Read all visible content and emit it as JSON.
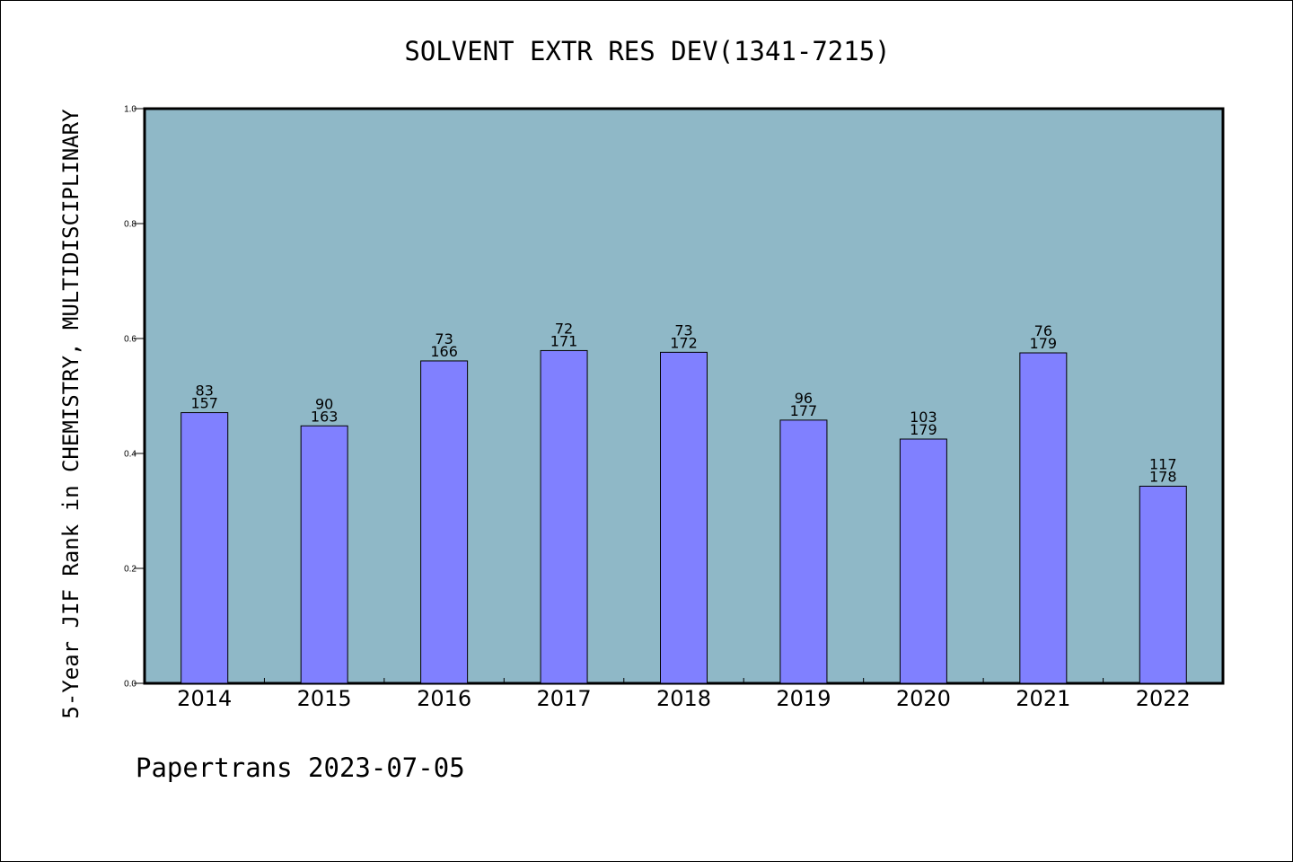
{
  "chart_data": {
    "type": "bar",
    "title": "SOLVENT EXTR RES DEV(1341-7215)",
    "xlabel": "",
    "ylabel": "5-Year JIF Rank in CHEMISTRY, MULTIDISCIPLINARY",
    "ylim": [
      0,
      1.0
    ],
    "yticks": [
      "0.0",
      "0.2",
      "0.4",
      "0.6",
      "0.8",
      "1.0"
    ],
    "grid": false,
    "categories": [
      "2014",
      "2015",
      "2016",
      "2017",
      "2018",
      "2019",
      "2020",
      "2021",
      "2022"
    ],
    "values": [
      0.471,
      0.448,
      0.561,
      0.579,
      0.576,
      0.458,
      0.425,
      0.575,
      0.343
    ],
    "rank": [
      "83",
      "90",
      "73",
      "72",
      "73",
      "96",
      "103",
      "76",
      "117"
    ],
    "total": [
      "157",
      "163",
      "166",
      "171",
      "172",
      "177",
      "179",
      "179",
      "178"
    ],
    "colors": {
      "bar": "#8080ff",
      "plot_background": "#8fb8c7",
      "axis": "#000000"
    }
  },
  "footer": {
    "text": "Papertrans 2023-07-05"
  }
}
